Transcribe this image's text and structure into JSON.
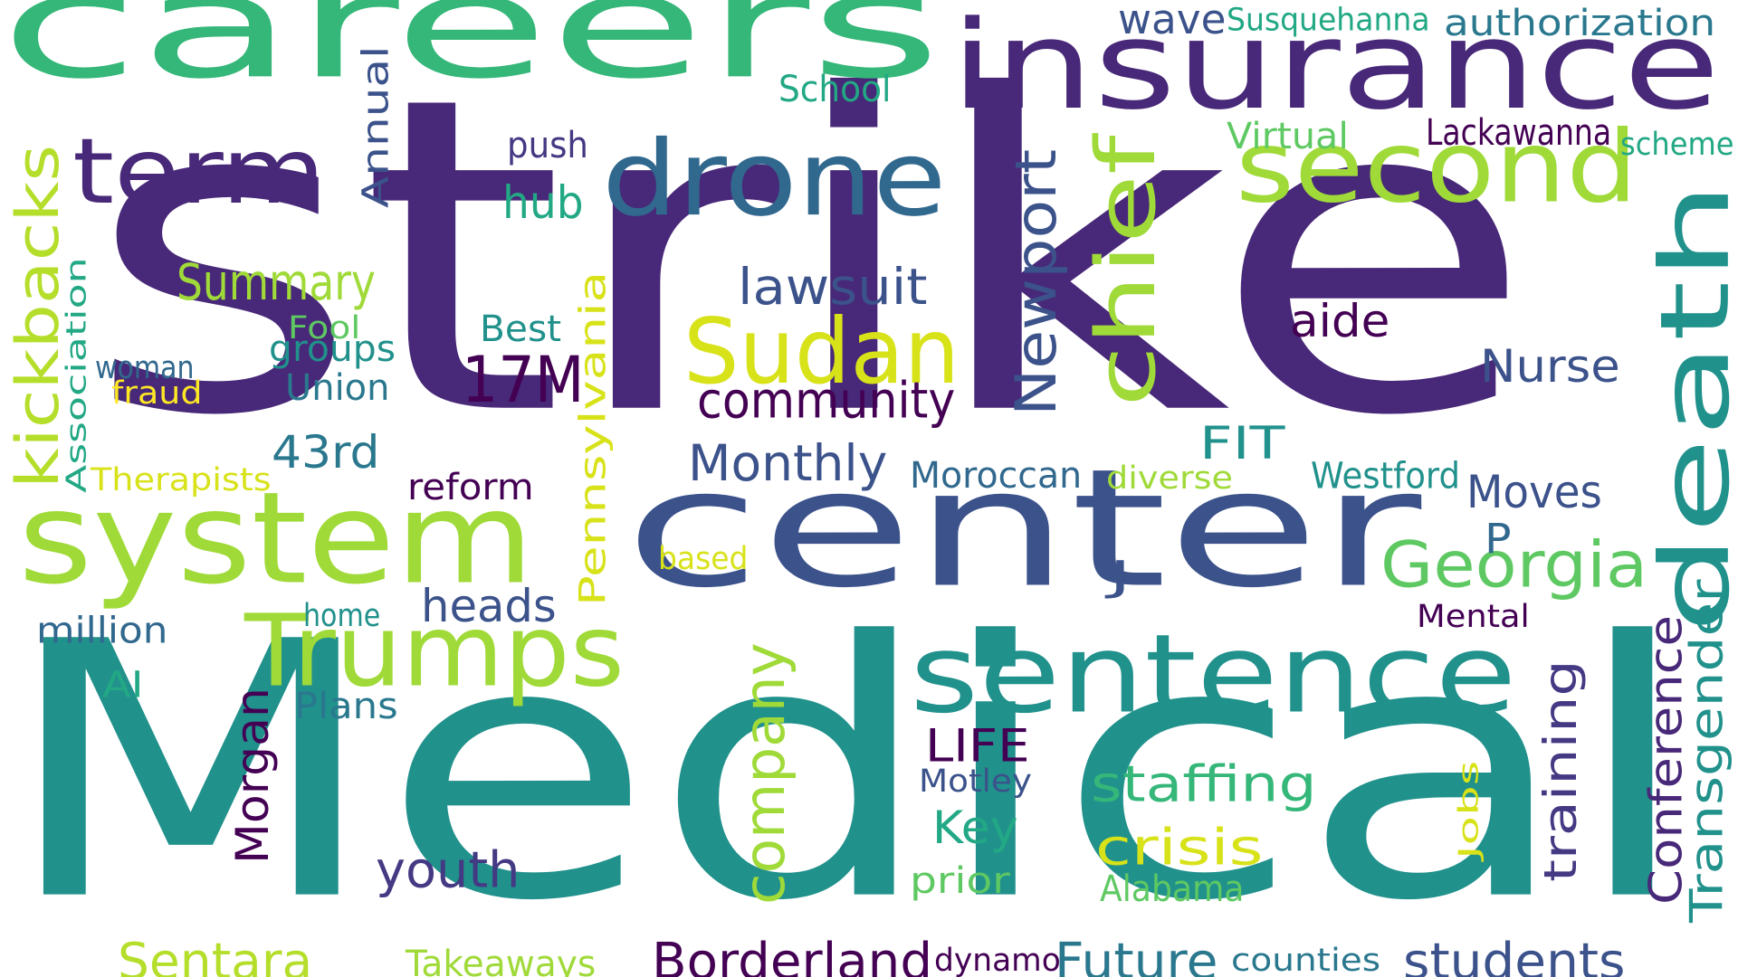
{
  "palette": {
    "dark_purple": "#482878",
    "deep_purple": "#440154",
    "indigo": "#443983",
    "blue": "#3b528b",
    "steel_blue": "#31688e",
    "teal_blue": "#2a788e",
    "teal": "#21918c",
    "green_teal": "#22a884",
    "green": "#35b779",
    "light_green": "#5ec962",
    "yellow_green": "#a0da39",
    "lime": "#b5de2b",
    "yellow": "#d8e219",
    "bright_yellow": "#fde725"
  },
  "words": [
    {
      "text": "strike",
      "color": "dark_purple",
      "orientation": "horizontal"
    },
    {
      "text": "Medical",
      "color": "teal",
      "orientation": "horizontal"
    },
    {
      "text": "careers",
      "color": "green",
      "orientation": "horizontal"
    },
    {
      "text": "center",
      "color": "blue",
      "orientation": "horizontal"
    },
    {
      "text": "insurance",
      "color": "dark_purple",
      "orientation": "horizontal"
    },
    {
      "text": "system",
      "color": "yellow_green",
      "orientation": "horizontal"
    },
    {
      "text": "death",
      "color": "teal",
      "orientation": "vertical"
    },
    {
      "text": "sentence",
      "color": "teal",
      "orientation": "horizontal"
    },
    {
      "text": "drone",
      "color": "steel_blue",
      "orientation": "horizontal"
    },
    {
      "text": "second",
      "color": "yellow_green",
      "orientation": "horizontal"
    },
    {
      "text": "term",
      "color": "dark_purple",
      "orientation": "horizontal"
    },
    {
      "text": "Trumps",
      "color": "yellow_green",
      "orientation": "horizontal"
    },
    {
      "text": "Sudan",
      "color": "yellow",
      "orientation": "horizontal"
    },
    {
      "text": "chief",
      "color": "yellow_green",
      "orientation": "vertical"
    },
    {
      "text": "kickbacks",
      "color": "lime",
      "orientation": "vertical"
    },
    {
      "text": "Georgia",
      "color": "light_green",
      "orientation": "horizontal"
    },
    {
      "text": "17M",
      "color": "deep_purple",
      "orientation": "horizontal"
    },
    {
      "text": "company",
      "color": "yellow_green",
      "orientation": "vertical"
    },
    {
      "text": "Newport",
      "color": "blue",
      "orientation": "vertical"
    },
    {
      "text": "Pennsylvania",
      "color": "yellow",
      "orientation": "vertical"
    },
    {
      "text": "community",
      "color": "deep_purple",
      "orientation": "horizontal"
    },
    {
      "text": "Summary",
      "color": "yellow_green",
      "orientation": "horizontal"
    },
    {
      "text": "lawsuit",
      "color": "blue",
      "orientation": "horizontal"
    },
    {
      "text": "Monthly",
      "color": "blue",
      "orientation": "horizontal"
    },
    {
      "text": "Transgender",
      "color": "teal",
      "orientation": "vertical"
    },
    {
      "text": "Conference",
      "color": "dark_purple",
      "orientation": "vertical"
    },
    {
      "text": "Borderland",
      "color": "deep_purple",
      "orientation": "horizontal"
    },
    {
      "text": "students",
      "color": "blue",
      "orientation": "horizontal"
    },
    {
      "text": "Sentara",
      "color": "lime",
      "orientation": "horizontal"
    },
    {
      "text": "Future",
      "color": "teal_blue",
      "orientation": "horizontal"
    },
    {
      "text": "staffing",
      "color": "green",
      "orientation": "horizontal"
    },
    {
      "text": "youth",
      "color": "indigo",
      "orientation": "horizontal"
    },
    {
      "text": "crisis",
      "color": "yellow",
      "orientation": "horizontal"
    },
    {
      "text": "Morgan",
      "color": "deep_purple",
      "orientation": "vertical"
    },
    {
      "text": "training",
      "color": "indigo",
      "orientation": "vertical"
    },
    {
      "text": "heads",
      "color": "blue",
      "orientation": "horizontal"
    },
    {
      "text": "Nurse",
      "color": "blue",
      "orientation": "horizontal"
    },
    {
      "text": "Moves",
      "color": "blue",
      "orientation": "horizontal"
    },
    {
      "text": "43rd",
      "color": "teal_blue",
      "orientation": "horizontal"
    },
    {
      "text": "hub",
      "color": "green_teal",
      "orientation": "horizontal"
    },
    {
      "text": "aide",
      "color": "deep_purple",
      "orientation": "horizontal"
    },
    {
      "text": "Key",
      "color": "green_teal",
      "orientation": "horizontal"
    },
    {
      "text": "LIFE",
      "color": "deep_purple",
      "orientation": "horizontal"
    },
    {
      "text": "FIT",
      "color": "teal",
      "orientation": "horizontal"
    },
    {
      "text": "Annual",
      "color": "blue",
      "orientation": "vertical"
    },
    {
      "text": "Association",
      "color": "green_teal",
      "orientation": "vertical"
    },
    {
      "text": "wave",
      "color": "blue",
      "orientation": "horizontal"
    },
    {
      "text": "authorization",
      "color": "teal_blue",
      "orientation": "horizontal"
    },
    {
      "text": "Susquehanna",
      "color": "green_teal",
      "orientation": "horizontal"
    },
    {
      "text": "School",
      "color": "green_teal",
      "orientation": "horizontal"
    },
    {
      "text": "Virtual",
      "color": "light_green",
      "orientation": "horizontal"
    },
    {
      "text": "push",
      "color": "indigo",
      "orientation": "horizontal"
    },
    {
      "text": "Lackawanna",
      "color": "deep_purple",
      "orientation": "horizontal"
    },
    {
      "text": "scheme",
      "color": "green_teal",
      "orientation": "horizontal"
    },
    {
      "text": "Best",
      "color": "teal",
      "orientation": "horizontal"
    },
    {
      "text": "Fool",
      "color": "light_green",
      "orientation": "horizontal"
    },
    {
      "text": "groups",
      "color": "teal",
      "orientation": "horizontal"
    },
    {
      "text": "woman",
      "color": "steel_blue",
      "orientation": "horizontal"
    },
    {
      "text": "Union",
      "color": "teal_blue",
      "orientation": "horizontal"
    },
    {
      "text": "fraud",
      "color": "bright_yellow",
      "orientation": "horizontal"
    },
    {
      "text": "Therapists",
      "color": "yellow",
      "orientation": "horizontal"
    },
    {
      "text": "reform",
      "color": "deep_purple",
      "orientation": "horizontal"
    },
    {
      "text": "Moroccan",
      "color": "steel_blue",
      "orientation": "horizontal"
    },
    {
      "text": "diverse",
      "color": "yellow_green",
      "orientation": "horizontal"
    },
    {
      "text": "Westford",
      "color": "teal",
      "orientation": "horizontal"
    },
    {
      "text": "P",
      "color": "steel_blue",
      "orientation": "horizontal"
    },
    {
      "text": "J",
      "color": "blue",
      "orientation": "horizontal"
    },
    {
      "text": "based",
      "color": "yellow",
      "orientation": "horizontal"
    },
    {
      "text": "Mental",
      "color": "deep_purple",
      "orientation": "horizontal"
    },
    {
      "text": "home",
      "color": "teal",
      "orientation": "horizontal"
    },
    {
      "text": "million",
      "color": "steel_blue",
      "orientation": "horizontal"
    },
    {
      "text": "AI",
      "color": "green_teal",
      "orientation": "horizontal"
    },
    {
      "text": "Plans",
      "color": "teal_blue",
      "orientation": "horizontal"
    },
    {
      "text": "Motley",
      "color": "blue",
      "orientation": "horizontal"
    },
    {
      "text": "prior",
      "color": "light_green",
      "orientation": "horizontal"
    },
    {
      "text": "Alabama",
      "color": "light_green",
      "orientation": "horizontal"
    },
    {
      "text": "Jobs",
      "color": "yellow",
      "orientation": "vertical"
    },
    {
      "text": "Takeaways",
      "color": "yellow_green",
      "orientation": "horizontal"
    },
    {
      "text": "dynamo",
      "color": "deep_purple",
      "orientation": "horizontal"
    },
    {
      "text": "counties",
      "color": "teal_blue",
      "orientation": "horizontal"
    }
  ]
}
